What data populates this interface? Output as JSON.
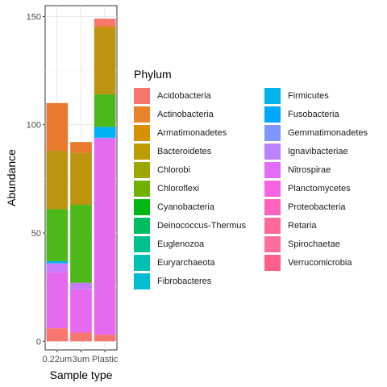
{
  "chart_data": {
    "type": "bar",
    "stacked": true,
    "xlabel": "Sample type",
    "ylabel": "Abundance",
    "categories": [
      "0.22um",
      "3um",
      "Plastic"
    ],
    "ylim": [
      -4,
      155
    ],
    "yticks": [
      0,
      50,
      100,
      150
    ],
    "grid": true,
    "legend_position": "right",
    "legend_title": "Phylum",
    "legend_columns": 2,
    "legend": [
      {
        "name": "Acidobacteria",
        "color": "#F8766D"
      },
      {
        "name": "Actinobacteria",
        "color": "#E9842C"
      },
      {
        "name": "Armatimonadetes",
        "color": "#D69100"
      },
      {
        "name": "Bacteroidetes",
        "color": "#BC9D00"
      },
      {
        "name": "Chlorobi",
        "color": "#9CA700"
      },
      {
        "name": "Chloroflexi",
        "color": "#6FB000"
      },
      {
        "name": "Cyanobacteria",
        "color": "#00B813"
      },
      {
        "name": "Deinococcus-Thermus",
        "color": "#00BD61"
      },
      {
        "name": "Euglenozoa",
        "color": "#00C08E"
      },
      {
        "name": "Euryarchaeota",
        "color": "#00C0B4"
      },
      {
        "name": "Fibrobacteres",
        "color": "#00BDD4"
      },
      {
        "name": "Firmicutes",
        "color": "#00B5EE"
      },
      {
        "name": "Fusobacteria",
        "color": "#00A7FF"
      },
      {
        "name": "Gemmatimonadetes",
        "color": "#7F96FF"
      },
      {
        "name": "Ignavibacteriae",
        "color": "#BC81FF"
      },
      {
        "name": "Nitrospirae",
        "color": "#E26EF7"
      },
      {
        "name": "Planctomycetes",
        "color": "#F863DF"
      },
      {
        "name": "Proteobacteria",
        "color": "#FF62BF"
      },
      {
        "name": "Retaria",
        "color": "#FF6A9A"
      },
      {
        "name": "Spirochaetae",
        "color": "#FF6F9C"
      },
      {
        "name": "Verrucomicrobia",
        "color": "#FF5F89"
      }
    ],
    "bars": [
      {
        "category": "0.22um",
        "segments": [
          {
            "phylum": "Acidobacteria",
            "value": 6,
            "color": "#F8766D"
          },
          {
            "phylum": "Proteobacteria",
            "value": 26,
            "color": "#E56AF0"
          },
          {
            "phylum": "Planctomycetes",
            "value": 4,
            "color": "#C77CFF"
          },
          {
            "phylum": "Firmicutes",
            "value": 1,
            "color": "#00B0F6"
          },
          {
            "phylum": "Cyanobacteria",
            "value": 24,
            "color": "#4CB81A"
          },
          {
            "phylum": "Bacteroidetes",
            "value": 27,
            "color": "#BC9410"
          },
          {
            "phylum": "Actinobacteria",
            "value": 22,
            "color": "#E8792E"
          }
        ]
      },
      {
        "category": "3um",
        "segments": [
          {
            "phylum": "Acidobacteria",
            "value": 4,
            "color": "#F8766D"
          },
          {
            "phylum": "Proteobacteria",
            "value": 20,
            "color": "#E56AF0"
          },
          {
            "phylum": "Planctomycetes",
            "value": 3,
            "color": "#C77CFF"
          },
          {
            "phylum": "Cyanobacteria",
            "value": 36,
            "color": "#4CB81A"
          },
          {
            "phylum": "Bacteroidetes",
            "value": 24,
            "color": "#BC9410"
          },
          {
            "phylum": "Actinobacteria",
            "value": 5,
            "color": "#E8792E"
          }
        ]
      },
      {
        "category": "Plastic",
        "segments": [
          {
            "phylum": "Acidobacteria",
            "value": 3,
            "color": "#F8766D"
          },
          {
            "phylum": "Proteobacteria",
            "value": 90,
            "color": "#E56AF0"
          },
          {
            "phylum": "Planctomycetes",
            "value": 1,
            "color": "#C77CFF"
          },
          {
            "phylum": "Firmicutes",
            "value": 5,
            "color": "#00B0F6"
          },
          {
            "phylum": "Cyanobacteria",
            "value": 15,
            "color": "#4CB81A"
          },
          {
            "phylum": "Bacteroidetes",
            "value": 31,
            "color": "#BC9410"
          },
          {
            "phylum": "Actinobacteria",
            "value": 1,
            "color": "#E8792E"
          },
          {
            "phylum": "Acidobacteria",
            "value": 3,
            "color": "#F8766D"
          }
        ]
      }
    ]
  }
}
